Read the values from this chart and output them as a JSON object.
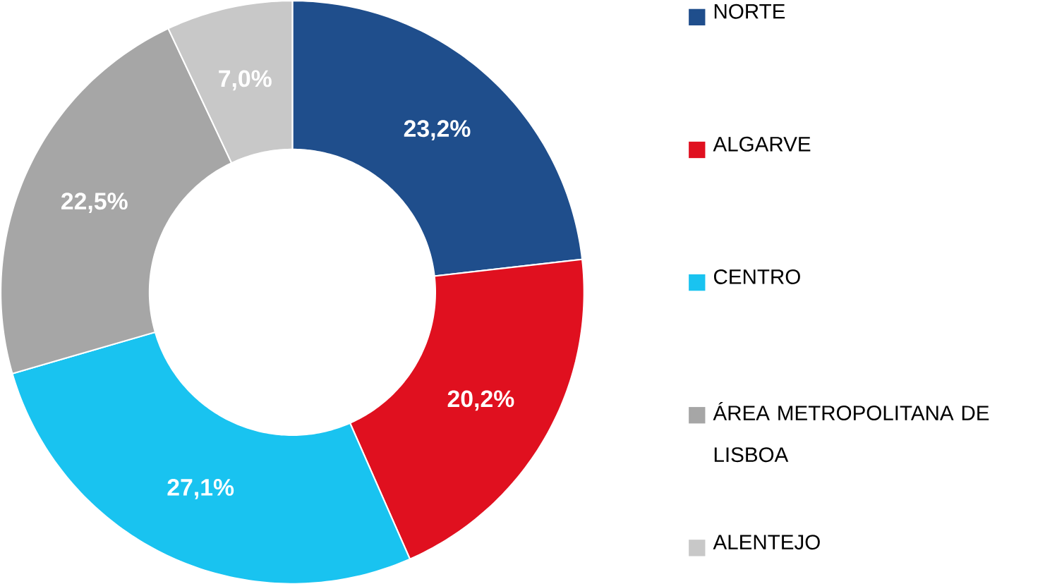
{
  "chart_data": {
    "type": "donut",
    "categories": [
      "NORTE",
      "ALGARVE",
      "CENTRO",
      "ÁREA METROPOLITANA DE LISBOA",
      "ALENTEJO"
    ],
    "values": [
      23.2,
      20.2,
      27.1,
      22.5,
      7.0
    ],
    "colors": [
      "#1f4e8c",
      "#e0101f",
      "#19c3f0",
      "#a6a6a6",
      "#c8c8c8"
    ],
    "value_labels": [
      "23,2%",
      "20,2%",
      "27,1%",
      "22,5%",
      "7,0%"
    ],
    "legend": "right"
  }
}
